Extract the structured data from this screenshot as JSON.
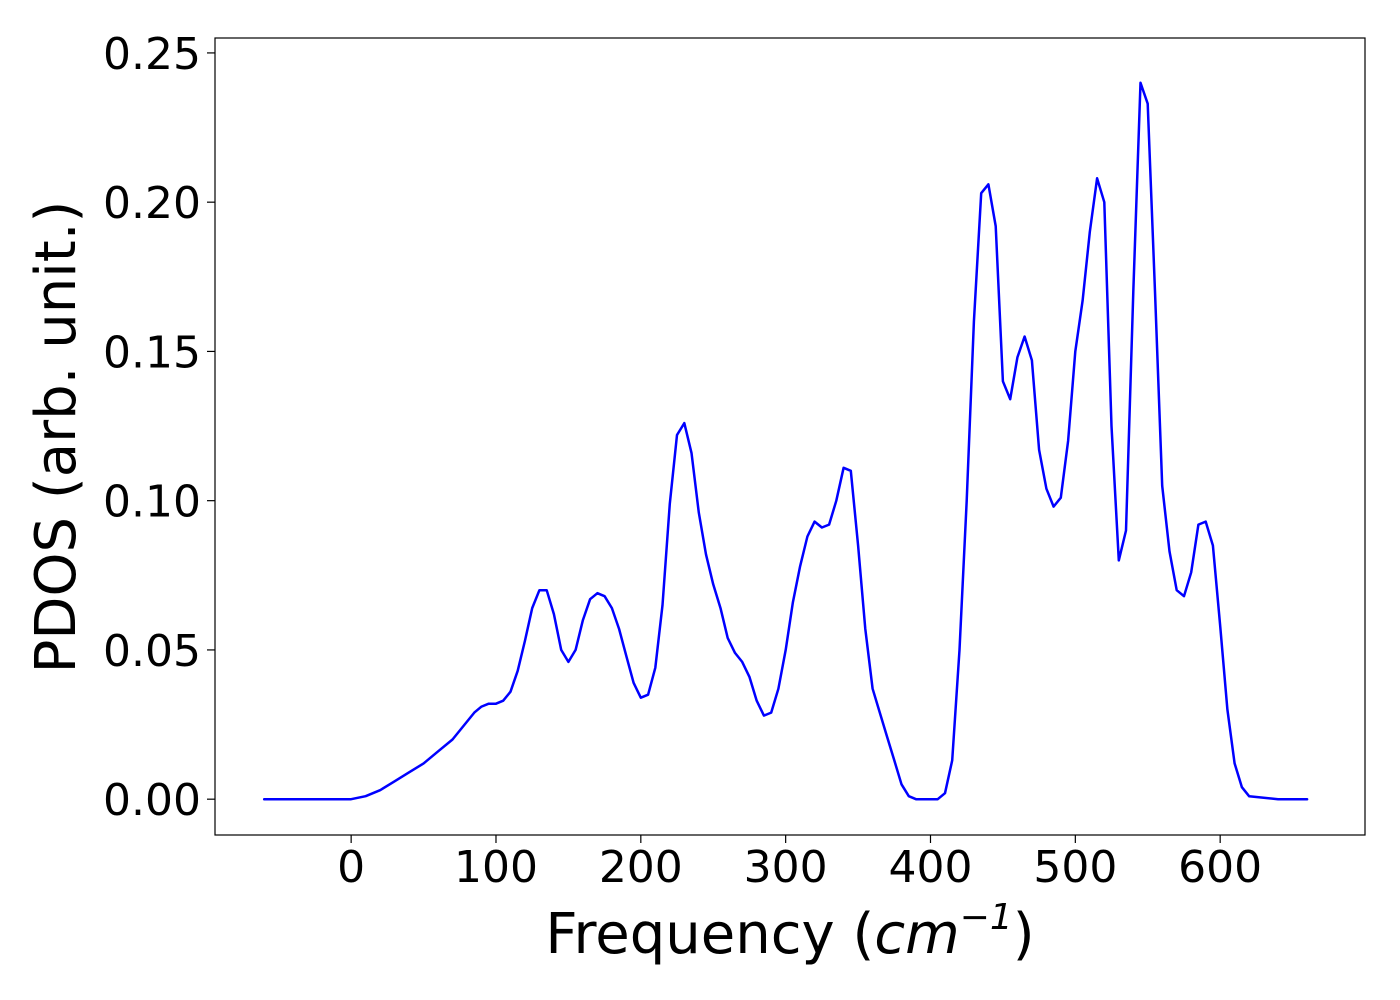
{
  "chart_data": {
    "type": "line",
    "xlabel": {
      "prefix": "Frequency (",
      "unit_base": "cm",
      "unit_exponent": "−1",
      "suffix": ")"
    },
    "ylabel": "PDOS (arb. unit.)",
    "xlim": [
      -94,
      700
    ],
    "ylim": [
      -0.012,
      0.255
    ],
    "xticks": [
      {
        "value": 0,
        "label": "0"
      },
      {
        "value": 100,
        "label": "100"
      },
      {
        "value": 200,
        "label": "200"
      },
      {
        "value": 300,
        "label": "300"
      },
      {
        "value": 400,
        "label": "400"
      },
      {
        "value": 500,
        "label": "500"
      },
      {
        "value": 600,
        "label": "600"
      }
    ],
    "yticks": [
      {
        "value": 0.0,
        "label": "0.00"
      },
      {
        "value": 0.05,
        "label": "0.05"
      },
      {
        "value": 0.1,
        "label": "0.10"
      },
      {
        "value": 0.15,
        "label": "0.15"
      },
      {
        "value": 0.2,
        "label": "0.20"
      },
      {
        "value": 0.25,
        "label": "0.25"
      }
    ],
    "grid": false,
    "legend": "none",
    "series": [
      {
        "color": "#0000ff",
        "x": [
          -60,
          -40,
          -20,
          0,
          10,
          20,
          30,
          40,
          50,
          60,
          70,
          80,
          85,
          90,
          95,
          100,
          105,
          110,
          115,
          120,
          125,
          130,
          135,
          140,
          145,
          150,
          155,
          160,
          165,
          170,
          175,
          180,
          185,
          190,
          195,
          200,
          205,
          210,
          215,
          220,
          225,
          230,
          235,
          240,
          245,
          250,
          255,
          260,
          265,
          270,
          275,
          280,
          285,
          290,
          295,
          300,
          305,
          310,
          315,
          320,
          325,
          330,
          335,
          340,
          345,
          350,
          355,
          360,
          365,
          370,
          375,
          380,
          385,
          390,
          395,
          400,
          405,
          410,
          415,
          420,
          425,
          430,
          435,
          440,
          445,
          450,
          455,
          460,
          465,
          470,
          475,
          480,
          485,
          490,
          495,
          500,
          505,
          510,
          515,
          520,
          525,
          530,
          535,
          540,
          545,
          550,
          555,
          560,
          565,
          570,
          575,
          580,
          585,
          590,
          595,
          600,
          605,
          610,
          615,
          620,
          640,
          660
        ],
        "y": [
          0.0,
          0.0,
          0.0,
          0.0,
          0.001,
          0.003,
          0.006,
          0.009,
          0.012,
          0.016,
          0.02,
          0.026,
          0.029,
          0.031,
          0.032,
          0.032,
          0.033,
          0.036,
          0.043,
          0.053,
          0.064,
          0.07,
          0.07,
          0.062,
          0.05,
          0.046,
          0.05,
          0.06,
          0.067,
          0.069,
          0.068,
          0.064,
          0.057,
          0.048,
          0.039,
          0.034,
          0.035,
          0.044,
          0.065,
          0.099,
          0.122,
          0.126,
          0.116,
          0.096,
          0.082,
          0.072,
          0.064,
          0.054,
          0.049,
          0.046,
          0.041,
          0.033,
          0.028,
          0.029,
          0.037,
          0.05,
          0.066,
          0.078,
          0.088,
          0.093,
          0.091,
          0.092,
          0.1,
          0.111,
          0.11,
          0.085,
          0.057,
          0.037,
          0.029,
          0.021,
          0.013,
          0.005,
          0.001,
          0.0,
          0.0,
          0.0,
          0.0,
          0.002,
          0.013,
          0.05,
          0.1,
          0.16,
          0.203,
          0.206,
          0.192,
          0.14,
          0.134,
          0.148,
          0.155,
          0.147,
          0.117,
          0.104,
          0.098,
          0.101,
          0.12,
          0.15,
          0.167,
          0.19,
          0.208,
          0.2,
          0.125,
          0.08,
          0.09,
          0.17,
          0.24,
          0.233,
          0.17,
          0.105,
          0.083,
          0.07,
          0.068,
          0.076,
          0.092,
          0.093,
          0.085,
          0.058,
          0.03,
          0.012,
          0.004,
          0.001,
          0.0,
          0.0
        ]
      }
    ]
  }
}
